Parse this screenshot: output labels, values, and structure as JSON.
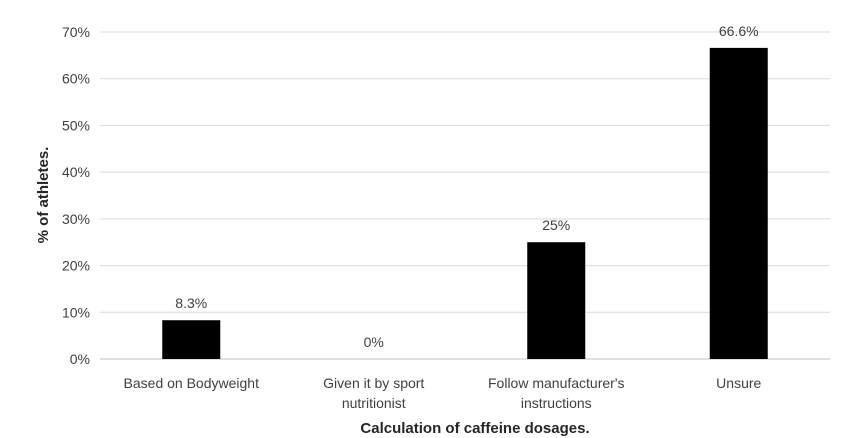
{
  "chart_data": {
    "type": "bar",
    "categories": [
      [
        "Based on Bodyweight"
      ],
      [
        "Given it by sport",
        "nutritionist"
      ],
      [
        "Follow manufacturer's",
        "instructions"
      ],
      [
        "Unsure"
      ]
    ],
    "values": [
      8.3,
      0,
      25,
      66.6
    ],
    "data_labels": [
      "8.3%",
      "0%",
      "25%",
      "66.6%"
    ],
    "y_ticks": [
      "0%",
      "10%",
      "20%",
      "30%",
      "40%",
      "50%",
      "60%",
      "70%"
    ],
    "ylim": [
      0,
      70
    ],
    "ylabel": "% of athletes.",
    "xlabel": "Calculation of caffeine dosages.",
    "grid": true,
    "legend": "none",
    "colors": {
      "bar": "#000000",
      "grid": "#d9d9d9",
      "axis": "#bfbfbf"
    }
  }
}
